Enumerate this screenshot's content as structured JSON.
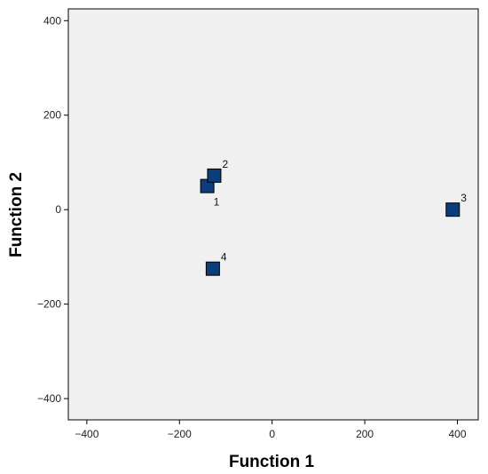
{
  "chart_data": {
    "type": "scatter",
    "xlabel": "Function 1",
    "ylabel": "Function 2",
    "xlim": [
      -440,
      445
    ],
    "ylim": [
      -445,
      425
    ],
    "xticks": [
      -400,
      -200,
      0,
      200,
      400
    ],
    "yticks": [
      400,
      200,
      0,
      -200,
      -400
    ],
    "xtick_labels": [
      "−400",
      "−200",
      "0",
      "200",
      "400"
    ],
    "ytick_labels": [
      "400",
      "200",
      "0",
      "−200",
      "−400"
    ],
    "grid": false,
    "plot_background": "#f0f0f0",
    "marker_color": "#0b3d7a",
    "marker_shape": "square",
    "points": [
      {
        "label": "1",
        "x": -140,
        "y": 50
      },
      {
        "label": "2",
        "x": -125,
        "y": 72
      },
      {
        "label": "3",
        "x": 390,
        "y": 0
      },
      {
        "label": "4",
        "x": -128,
        "y": -125
      }
    ]
  }
}
